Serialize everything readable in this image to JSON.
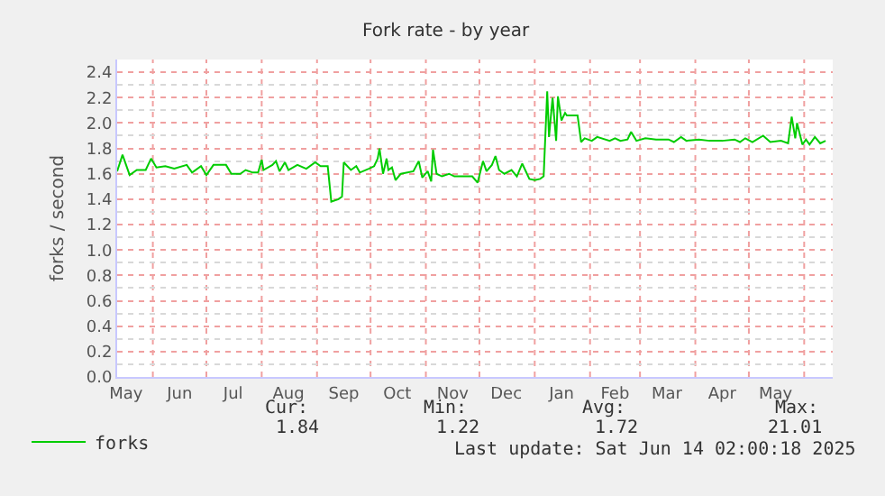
{
  "chart_data": {
    "type": "line",
    "title": "Fork rate - by year",
    "ylabel": "forks / second",
    "x": [
      "2024-05-12",
      "2024-05-15",
      "2024-05-19",
      "2024-05-23",
      "2024-05-28",
      "2024-05-31",
      "2024-06-03",
      "2024-06-08",
      "2024-06-13",
      "2024-06-20",
      "2024-06-23",
      "2024-06-28",
      "2024-07-01",
      "2024-07-05",
      "2024-07-12",
      "2024-07-15",
      "2024-07-20",
      "2024-07-23",
      "2024-07-27",
      "2024-07-30",
      "2024-08-01",
      "2024-08-02",
      "2024-08-07",
      "2024-08-09",
      "2024-08-11",
      "2024-08-14",
      "2024-08-16",
      "2024-08-21",
      "2024-08-26",
      "2024-08-31",
      "2024-09-03",
      "2024-09-07",
      "2024-09-09",
      "2024-09-13",
      "2024-09-15",
      "2024-09-16",
      "2024-09-20",
      "2024-09-23",
      "2024-09-25",
      "2024-09-30",
      "2024-10-03",
      "2024-10-05",
      "2024-10-06",
      "2024-10-08",
      "2024-10-10",
      "2024-10-11",
      "2024-10-13",
      "2024-10-15",
      "2024-10-18",
      "2024-10-25",
      "2024-10-28",
      "2024-10-30",
      "2024-11-02",
      "2024-11-04",
      "2024-11-05",
      "2024-11-07",
      "2024-11-10",
      "2024-11-14",
      "2024-11-17",
      "2024-11-27",
      "2024-11-30",
      "2024-12-03",
      "2024-12-05",
      "2024-12-08",
      "2024-12-10",
      "2024-12-12",
      "2024-12-15",
      "2024-12-19",
      "2024-12-22",
      "2024-12-25",
      "2024-12-29",
      "2025-01-01",
      "2025-01-04",
      "2025-01-06",
      "2025-01-08",
      "2025-01-09",
      "2025-01-11",
      "2025-01-13",
      "2025-01-14",
      "2025-01-16",
      "2025-01-18",
      "2025-01-19",
      "2025-01-25",
      "2025-01-27",
      "2025-01-29",
      "2025-02-02",
      "2025-02-05",
      "2025-02-12",
      "2025-02-15",
      "2025-02-18",
      "2025-02-22",
      "2025-02-24",
      "2025-02-27",
      "2025-03-04",
      "2025-03-10",
      "2025-03-17",
      "2025-03-20",
      "2025-03-24",
      "2025-03-27",
      "2025-04-03",
      "2025-04-09",
      "2025-04-16",
      "2025-04-23",
      "2025-04-26",
      "2025-04-29",
      "2025-05-03",
      "2025-05-09",
      "2025-05-13",
      "2025-05-19",
      "2025-05-23",
      "2025-05-25",
      "2025-05-27",
      "2025-05-28",
      "2025-05-31",
      "2025-06-02",
      "2025-06-04",
      "2025-06-07",
      "2025-06-10",
      "2025-06-13"
    ],
    "series": [
      {
        "name": "forks",
        "color": "#00cc00",
        "values": [
          1.62,
          1.75,
          1.59,
          1.63,
          1.63,
          1.72,
          1.65,
          1.66,
          1.64,
          1.67,
          1.61,
          1.66,
          1.59,
          1.67,
          1.67,
          1.6,
          1.6,
          1.63,
          1.61,
          1.61,
          1.71,
          1.63,
          1.67,
          1.7,
          1.62,
          1.69,
          1.63,
          1.67,
          1.64,
          1.69,
          1.66,
          1.66,
          1.38,
          1.4,
          1.42,
          1.69,
          1.63,
          1.66,
          1.61,
          1.64,
          1.66,
          1.72,
          1.8,
          1.6,
          1.72,
          1.63,
          1.65,
          1.55,
          1.6,
          1.62,
          1.7,
          1.57,
          1.62,
          1.54,
          1.79,
          1.6,
          1.58,
          1.6,
          1.58,
          1.58,
          1.53,
          1.7,
          1.62,
          1.67,
          1.74,
          1.63,
          1.6,
          1.63,
          1.58,
          1.68,
          1.56,
          1.55,
          1.56,
          1.58,
          2.25,
          1.89,
          2.2,
          1.86,
          2.21,
          2.02,
          2.08,
          2.06,
          2.06,
          1.85,
          1.88,
          1.86,
          1.89,
          1.86,
          1.88,
          1.86,
          1.87,
          1.93,
          1.86,
          1.88,
          1.87,
          1.87,
          1.85,
          1.89,
          1.86,
          1.87,
          1.86,
          1.86,
          1.87,
          1.85,
          1.88,
          1.85,
          1.9,
          1.85,
          1.86,
          1.84,
          2.05,
          1.88,
          2.0,
          1.83,
          1.87,
          1.83,
          1.89,
          1.84,
          1.86
        ]
      }
    ],
    "xlim": [
      "2024-05-12",
      "2025-06-17"
    ],
    "xticks": [
      {
        "value": "2024-05-17",
        "label": "May"
      },
      {
        "value": "2024-06-01",
        "label": null
      },
      {
        "value": "2024-06-16",
        "label": "Jun"
      },
      {
        "value": "2024-07-01",
        "label": null
      },
      {
        "value": "2024-07-16",
        "label": "Jul"
      },
      {
        "value": "2024-08-01",
        "label": null
      },
      {
        "value": "2024-08-16",
        "label": "Aug"
      },
      {
        "value": "2024-09-01",
        "label": null
      },
      {
        "value": "2024-09-16",
        "label": "Sep"
      },
      {
        "value": "2024-10-01",
        "label": null
      },
      {
        "value": "2024-10-16",
        "label": "Oct"
      },
      {
        "value": "2024-11-01",
        "label": null
      },
      {
        "value": "2024-11-16",
        "label": "Nov"
      },
      {
        "value": "2024-12-01",
        "label": null
      },
      {
        "value": "2024-12-16",
        "label": "Dec"
      },
      {
        "value": "2025-01-01",
        "label": null
      },
      {
        "value": "2025-01-16",
        "label": "Jan"
      },
      {
        "value": "2025-02-01",
        "label": null
      },
      {
        "value": "2025-02-15",
        "label": "Feb"
      },
      {
        "value": "2025-03-01",
        "label": null
      },
      {
        "value": "2025-03-16",
        "label": "Mar"
      },
      {
        "value": "2025-04-01",
        "label": null
      },
      {
        "value": "2025-04-16",
        "label": "Apr"
      },
      {
        "value": "2025-05-01",
        "label": null
      },
      {
        "value": "2025-05-16",
        "label": "May"
      },
      {
        "value": "2025-06-01",
        "label": null
      }
    ],
    "ylim": [
      0,
      2.5
    ],
    "yticks": [
      {
        "value": 0,
        "label": "0.0"
      },
      {
        "value": 0.1,
        "label": null
      },
      0.2,
      {
        "value": 0.3,
        "label": null
      },
      0.4,
      {
        "value": 0.5,
        "label": null
      },
      0.6,
      {
        "value": 0.7,
        "label": null
      },
      0.8,
      {
        "value": 0.9,
        "label": null
      },
      {
        "value": 1,
        "label": "1.0"
      },
      {
        "value": 1.1,
        "label": null
      },
      1.2,
      {
        "value": 1.3,
        "label": null
      },
      1.4,
      {
        "value": 1.5,
        "label": null
      },
      1.6,
      {
        "value": 1.7,
        "label": null
      },
      1.8,
      {
        "value": 1.9,
        "label": null
      },
      {
        "value": 2,
        "label": "2.0"
      },
      {
        "value": 2.1,
        "label": null
      },
      2.2,
      {
        "value": 2.3,
        "label": null
      },
      2.4
    ],
    "grid": true,
    "legend": "bottom left",
    "annotations": [
      "Cur:",
      "1.84",
      "Min:",
      "1.22",
      "Avg:",
      "1.72",
      "Max:",
      "21.01",
      "Last update: Sat Jun 14 02:00:18 2025"
    ]
  }
}
